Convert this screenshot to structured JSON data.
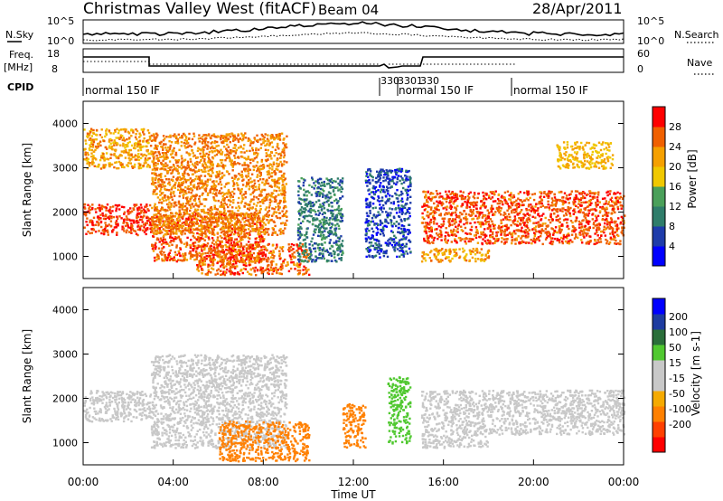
{
  "header": {
    "title": "Christmas Valley West (fitACF)",
    "beam": "Beam 04",
    "date": "28/Apr/2011"
  },
  "noise_panel": {
    "left_label": "N.Sky",
    "right_label": "N.Search",
    "left_ticks": [
      "10^5",
      "10^0"
    ],
    "right_ticks": [
      "10^5",
      "10^0"
    ]
  },
  "freq_panel": {
    "left_label_1": "Freq.",
    "left_label_2": "[MHz]",
    "right_label": "Nave",
    "left_ticks": [
      "18",
      "8"
    ],
    "right_ticks": [
      "60",
      "0"
    ]
  },
  "cpid_panel": {
    "label": "CPID",
    "segments": [
      "normal 150 IF",
      "330",
      "3301",
      "330",
      "normal 150 IF",
      "normal 150 IF"
    ]
  },
  "x_axis": {
    "title": "Time UT",
    "ticks": [
      "00:00",
      "04:00",
      "08:00",
      "12:00",
      "16:00",
      "20:00",
      "00:00"
    ]
  },
  "colors": {
    "power_scale": [
      "#0000ff",
      "#1e3caa",
      "#2f7d6a",
      "#4aa05a",
      "#f0c800",
      "#f5a000",
      "#f06000",
      "#ff0000"
    ],
    "velocity_scale": [
      "#ff0000",
      "#ff4000",
      "#ff8000",
      "#f5aa00",
      "#c8c8c8",
      "#c8c8c8",
      "#50c830",
      "#2a6e3a",
      "#1e3ca0",
      "#0000ff"
    ],
    "ground_scatter": "#c8c8c8"
  },
  "chart_data": [
    {
      "type": "heatmap",
      "title": "Power",
      "ylabel": "Slant Range [km]",
      "xlabel": "Time UT",
      "xlim": [
        0,
        24
      ],
      "ylim": [
        500,
        4500
      ],
      "yticks": [
        "1000",
        "2000",
        "3000",
        "4000"
      ],
      "colorbar": {
        "label": "Power [dB]",
        "ticks": [
          "4",
          "8",
          "12",
          "16",
          "20",
          "24",
          "28"
        ],
        "range": [
          0,
          32
        ]
      },
      "regions": [
        {
          "t": [
            0,
            3
          ],
          "range": [
            1500,
            2200
          ],
          "value": 28
        },
        {
          "t": [
            0,
            3
          ],
          "range": [
            3000,
            3900
          ],
          "value": 22
        },
        {
          "t": [
            3,
            8
          ],
          "range": [
            900,
            2000
          ],
          "value": 26
        },
        {
          "t": [
            3,
            9
          ],
          "range": [
            1500,
            3800
          ],
          "value": 24
        },
        {
          "t": [
            5,
            10
          ],
          "range": [
            600,
            1300
          ],
          "value": 26
        },
        {
          "t": [
            9.5,
            11.5
          ],
          "range": [
            900,
            2800
          ],
          "value": 10
        },
        {
          "t": [
            12.5,
            14.5
          ],
          "range": [
            1000,
            3000
          ],
          "value": 6
        },
        {
          "t": [
            15,
            24
          ],
          "range": [
            1300,
            2500
          ],
          "value": 27
        },
        {
          "t": [
            15,
            18
          ],
          "range": [
            900,
            1200
          ],
          "value": 22
        },
        {
          "t": [
            21,
            23.5
          ],
          "range": [
            3000,
            3600
          ],
          "value": 20
        }
      ]
    },
    {
      "type": "heatmap",
      "title": "Velocity",
      "ylabel": "Slant Range [km]",
      "xlabel": "Time UT",
      "xlim": [
        0,
        24
      ],
      "ylim": [
        500,
        4500
      ],
      "yticks": [
        "1000",
        "2000",
        "3000",
        "4000"
      ],
      "colorbar": {
        "label": "Velocity [m s-1]",
        "ticks": [
          "200",
          "100",
          "50",
          "15",
          "-15",
          "-50",
          "-100",
          "-200"
        ],
        "range": [
          -250,
          250
        ]
      },
      "regions": [
        {
          "t": [
            0,
            3
          ],
          "range": [
            1500,
            2200
          ],
          "value": 0,
          "ground_scatter": true
        },
        {
          "t": [
            3,
            9
          ],
          "range": [
            900,
            3000
          ],
          "value": 0,
          "ground_scatter": true
        },
        {
          "t": [
            6,
            10
          ],
          "range": [
            600,
            1500
          ],
          "value": -70
        },
        {
          "t": [
            11.5,
            12.5
          ],
          "range": [
            900,
            1900
          ],
          "value": -70
        },
        {
          "t": [
            13.5,
            14.5
          ],
          "range": [
            1000,
            2500
          ],
          "value": 40
        },
        {
          "t": [
            15,
            24
          ],
          "range": [
            1200,
            2200
          ],
          "value": 0,
          "ground_scatter": true
        },
        {
          "t": [
            15,
            18
          ],
          "range": [
            900,
            1200
          ],
          "value": 0,
          "ground_scatter": true
        }
      ]
    }
  ]
}
